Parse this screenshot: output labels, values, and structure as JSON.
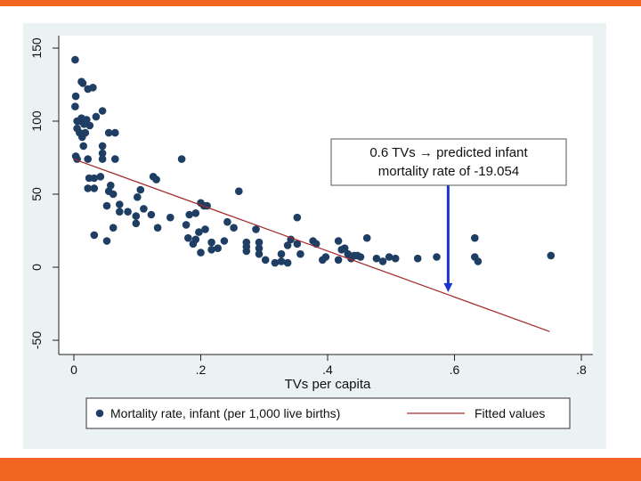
{
  "colors": {
    "accent_bar": "#f26522",
    "frame_background": "#eaf2f3",
    "plot_background": "#ffffff",
    "marker": "#1f3e63",
    "fitted_line": "#a52a2a",
    "arrow": "#1a33cc"
  },
  "chart_data": {
    "type": "scatter",
    "xlabel": "TVs per capita",
    "ylabel": "",
    "xlim": [
      0,
      0.8
    ],
    "ylim": [
      -50,
      150
    ],
    "x_ticks": [
      {
        "value": 0,
        "label": "0"
      },
      {
        "value": 0.2,
        "label": ".2"
      },
      {
        "value": 0.4,
        "label": ".4"
      },
      {
        "value": 0.6,
        "label": ".6"
      },
      {
        "value": 0.8,
        "label": ".8"
      }
    ],
    "y_ticks": [
      {
        "value": -50,
        "label": "-50"
      },
      {
        "value": 0,
        "label": "0"
      },
      {
        "value": 50,
        "label": "50"
      },
      {
        "value": 100,
        "label": "100"
      },
      {
        "value": 150,
        "label": "150"
      }
    ],
    "grid": false,
    "legend_position": "bottom",
    "legend": {
      "scatter_label": "Mortality rate, infant (per 1,000 live births)",
      "line_label": "Fitted values"
    },
    "annotation": {
      "line1": "0.6 TVs → predicted infant",
      "line2": "mortality rate of -19.054",
      "arrow_x": 0.59,
      "arrow_from_y": 57,
      "arrow_to_y": -17
    },
    "fitted_line": {
      "x": [
        0.0,
        0.75
      ],
      "y": [
        74,
        -44
      ]
    },
    "series": [
      {
        "name": "Mortality rate, infant (per 1,000 live births)",
        "points": [
          [
            0.002,
            142
          ],
          [
            0.012,
            127
          ],
          [
            0.014,
            126
          ],
          [
            0.022,
            122
          ],
          [
            0.03,
            123
          ],
          [
            0.003,
            117
          ],
          [
            0.002,
            110
          ],
          [
            0.045,
            107
          ],
          [
            0.035,
            103
          ],
          [
            0.005,
            100
          ],
          [
            0.01,
            100
          ],
          [
            0.012,
            102
          ],
          [
            0.016,
            98
          ],
          [
            0.02,
            101
          ],
          [
            0.025,
            97
          ],
          [
            0.005,
            95
          ],
          [
            0.009,
            92
          ],
          [
            0.018,
            92
          ],
          [
            0.013,
            89
          ],
          [
            0.015,
            83
          ],
          [
            0.055,
            92
          ],
          [
            0.065,
            92
          ],
          [
            0.045,
            83
          ],
          [
            0.045,
            78
          ],
          [
            0.045,
            74
          ],
          [
            0.065,
            74
          ],
          [
            0.003,
            76
          ],
          [
            0.005,
            74
          ],
          [
            0.022,
            74
          ],
          [
            0.17,
            74
          ],
          [
            0.024,
            61
          ],
          [
            0.032,
            61
          ],
          [
            0.042,
            62
          ],
          [
            0.058,
            56
          ],
          [
            0.062,
            50
          ],
          [
            0.022,
            54
          ],
          [
            0.032,
            54
          ],
          [
            0.055,
            52
          ],
          [
            0.1,
            48
          ],
          [
            0.105,
            53
          ],
          [
            0.125,
            62
          ],
          [
            0.13,
            60
          ],
          [
            0.26,
            52
          ],
          [
            0.052,
            42
          ],
          [
            0.072,
            43
          ],
          [
            0.072,
            38
          ],
          [
            0.098,
            35
          ],
          [
            0.098,
            30
          ],
          [
            0.11,
            40
          ],
          [
            0.085,
            38
          ],
          [
            0.122,
            36
          ],
          [
            0.132,
            27
          ],
          [
            0.152,
            34
          ],
          [
            0.182,
            36
          ],
          [
            0.192,
            37
          ],
          [
            0.2,
            44
          ],
          [
            0.205,
            42
          ],
          [
            0.21,
            42
          ],
          [
            0.242,
            31
          ],
          [
            0.252,
            27
          ],
          [
            0.352,
            34
          ],
          [
            0.032,
            22
          ],
          [
            0.052,
            18
          ],
          [
            0.062,
            27
          ],
          [
            0.177,
            29
          ],
          [
            0.18,
            20
          ],
          [
            0.188,
            16
          ],
          [
            0.192,
            19
          ],
          [
            0.197,
            24
          ],
          [
            0.207,
            26
          ],
          [
            0.217,
            17
          ],
          [
            0.237,
            18
          ],
          [
            0.227,
            13
          ],
          [
            0.217,
            12
          ],
          [
            0.2,
            10
          ],
          [
            0.272,
            17
          ],
          [
            0.272,
            14
          ],
          [
            0.272,
            11
          ],
          [
            0.287,
            26
          ],
          [
            0.292,
            17
          ],
          [
            0.292,
            13
          ],
          [
            0.292,
            9
          ],
          [
            0.327,
            9
          ],
          [
            0.337,
            15
          ],
          [
            0.342,
            19
          ],
          [
            0.352,
            16
          ],
          [
            0.357,
            9
          ],
          [
            0.377,
            18
          ],
          [
            0.382,
            16
          ],
          [
            0.302,
            5
          ],
          [
            0.317,
            3
          ],
          [
            0.327,
            4
          ],
          [
            0.337,
            3
          ],
          [
            0.397,
            7
          ],
          [
            0.392,
            5
          ],
          [
            0.417,
            18
          ],
          [
            0.427,
            13
          ],
          [
            0.422,
            12
          ],
          [
            0.432,
            9
          ],
          [
            0.442,
            8
          ],
          [
            0.452,
            7
          ],
          [
            0.462,
            20
          ],
          [
            0.477,
            6
          ],
          [
            0.487,
            4
          ],
          [
            0.497,
            7
          ],
          [
            0.507,
            6
          ],
          [
            0.437,
            6
          ],
          [
            0.417,
            5
          ],
          [
            0.447,
            8
          ],
          [
            0.542,
            6
          ],
          [
            0.572,
            7
          ],
          [
            0.632,
            20
          ],
          [
            0.632,
            7
          ],
          [
            0.637,
            4
          ],
          [
            0.752,
            8
          ]
        ]
      }
    ]
  }
}
